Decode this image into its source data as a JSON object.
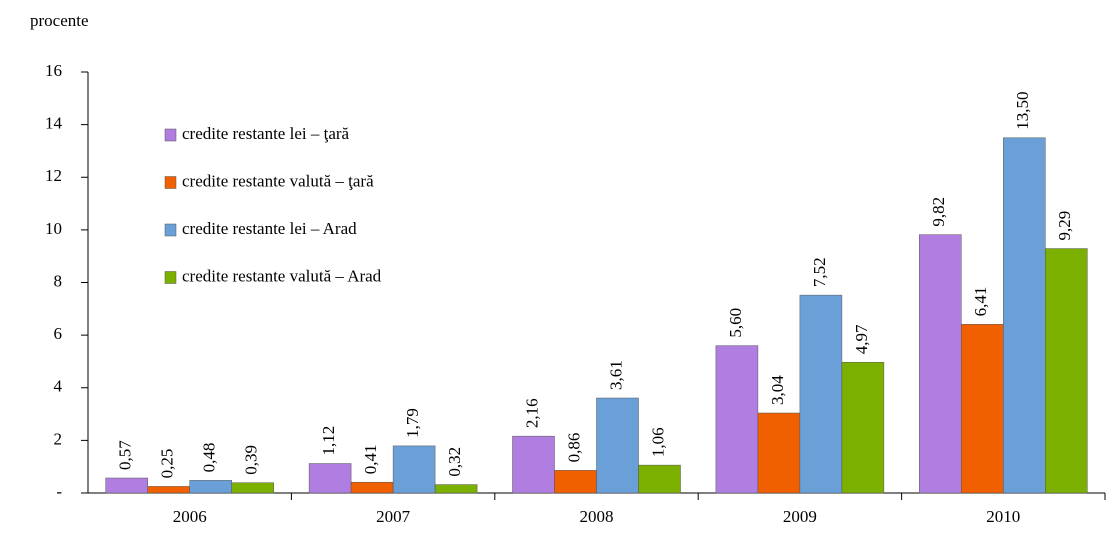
{
  "chart_data": {
    "type": "bar",
    "y_axis_label": "procente",
    "categories": [
      "2006",
      "2007",
      "2008",
      "2009",
      "2010"
    ],
    "series": [
      {
        "name": "credite restante lei – ţară",
        "color": "#b07ee0",
        "values": [
          0.57,
          1.12,
          2.16,
          5.6,
          9.82
        ],
        "value_labels": [
          "0,57",
          "1,12",
          "2,16",
          "5,60",
          "9,82"
        ]
      },
      {
        "name": "credite restante valută – ţară",
        "color": "#f06000",
        "values": [
          0.25,
          0.41,
          0.86,
          3.04,
          6.41
        ],
        "value_labels": [
          "0,25",
          "0,41",
          "0,86",
          "3,04",
          "6,41"
        ]
      },
      {
        "name": "credite restante lei – Arad",
        "color": "#6a9fd8",
        "values": [
          0.48,
          1.79,
          3.61,
          7.52,
          13.5
        ],
        "value_labels": [
          "0,48",
          "1,79",
          "3,61",
          "7,52",
          "13,50"
        ]
      },
      {
        "name": "credite restante valută – Arad",
        "color": "#7cb000",
        "values": [
          0.39,
          0.32,
          1.06,
          4.97,
          9.29
        ],
        "value_labels": [
          "0,39",
          "0,32",
          "1,06",
          "4,97",
          "9,29"
        ]
      }
    ],
    "ylim": [
      0,
      16
    ],
    "yticks": [
      {
        "value": 0,
        "label": "-"
      },
      2,
      4,
      6,
      8,
      10,
      12,
      14,
      16
    ],
    "legend": "upper left"
  }
}
